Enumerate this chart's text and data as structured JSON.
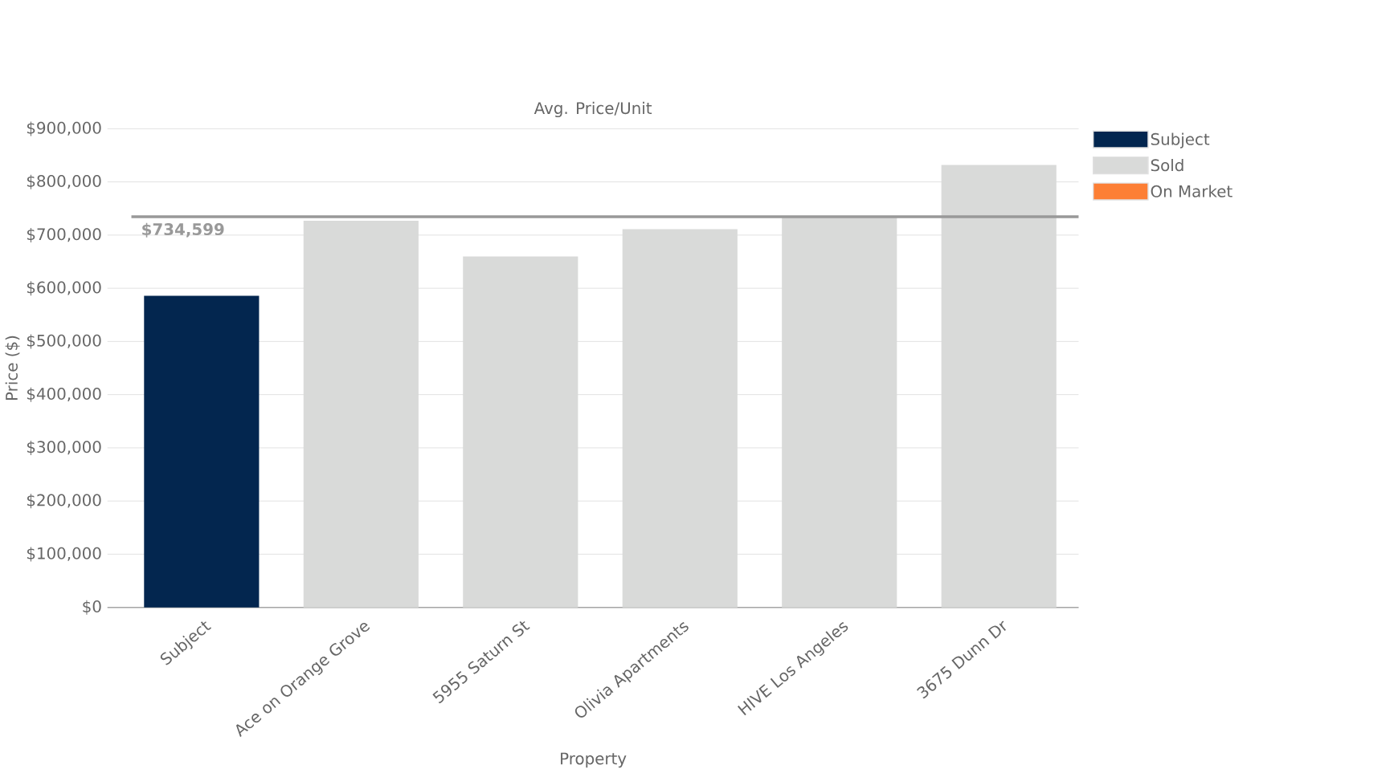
{
  "chart_data": {
    "type": "bar",
    "title": "Avg. Price/Unit",
    "xlabel": "Property",
    "ylabel": "Price ($)",
    "categories": [
      "Subject",
      "Ace on Orange Grove",
      "5955 Saturn St",
      "Olivia Apartments",
      "HIVE Los Angeles",
      "3675 Dunn Dr"
    ],
    "series": [
      {
        "name": "Subject",
        "color": "#03264f",
        "values": [
          586000,
          null,
          null,
          null,
          null,
          null
        ]
      },
      {
        "name": "Sold",
        "color": "#d9dad9",
        "values": [
          null,
          727000,
          660000,
          711000,
          733000,
          832000
        ]
      },
      {
        "name": "On Market",
        "color": "#fd7f35",
        "values": [
          null,
          null,
          null,
          null,
          null,
          null
        ]
      }
    ],
    "ylim": [
      0,
      900000
    ],
    "yticks": [
      {
        "value": 0,
        "label": "$0"
      },
      {
        "value": 100000,
        "label": "$100,000"
      },
      {
        "value": 200000,
        "label": "$200,000"
      },
      {
        "value": 300000,
        "label": "$300,000"
      },
      {
        "value": 400000,
        "label": "$400,000"
      },
      {
        "value": 500000,
        "label": "$500,000"
      },
      {
        "value": 600000,
        "label": "$600,000"
      },
      {
        "value": 700000,
        "label": "$700,000"
      },
      {
        "value": 800000,
        "label": "$800,000"
      },
      {
        "value": 900000,
        "label": "$900,000"
      }
    ],
    "ref_lines": [
      {
        "axis": "y",
        "value": 734599,
        "label": "$734,599",
        "color": "#999999"
      }
    ],
    "grid": "y",
    "legend": "top right"
  }
}
